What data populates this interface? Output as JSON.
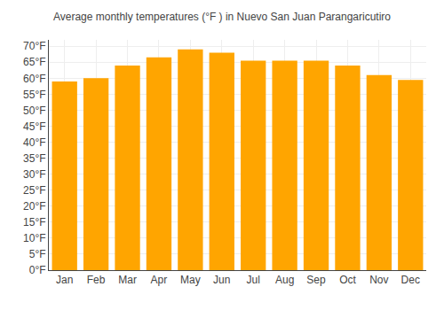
{
  "chart_data": {
    "type": "bar",
    "title": "Average monthly temperatures (°F ) in Nuevo San Juan Parangaricutiro",
    "categories": [
      "Jan",
      "Feb",
      "Mar",
      "Apr",
      "May",
      "Jun",
      "Jul",
      "Aug",
      "Sep",
      "Oct",
      "Nov",
      "Dec"
    ],
    "values": [
      59,
      60,
      64,
      66.5,
      69,
      68,
      65.5,
      65.5,
      65.5,
      64,
      61,
      59.5
    ],
    "color": "#FFA500",
    "ylim": [
      0,
      72
    ],
    "yticks": [
      {
        "value": 0,
        "label": "0°F"
      },
      {
        "value": 5,
        "label": "5°F"
      },
      {
        "value": 10,
        "label": "10°F"
      },
      {
        "value": 15,
        "label": "15°F"
      },
      {
        "value": 20,
        "label": "20°F"
      },
      {
        "value": 25,
        "label": "25°F"
      },
      {
        "value": 30,
        "label": "30°F"
      },
      {
        "value": 35,
        "label": "35°F"
      },
      {
        "value": 40,
        "label": "40°F"
      },
      {
        "value": 45,
        "label": "45°F"
      },
      {
        "value": 50,
        "label": "50°F"
      },
      {
        "value": 55,
        "label": "55°F"
      },
      {
        "value": 60,
        "label": "60°F"
      },
      {
        "value": 65,
        "label": "65°F"
      },
      {
        "value": 70,
        "label": "70°F"
      }
    ],
    "grid": true
  }
}
